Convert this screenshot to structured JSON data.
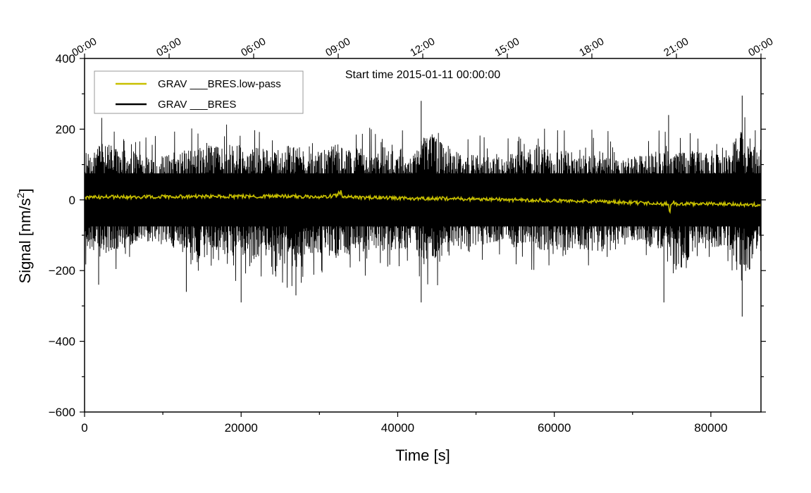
{
  "chart_data": {
    "type": "line",
    "title": "Start time 2015-01-11 00:00:00",
    "xlabel": "Time [s]",
    "ylabel_main": "Signal [nm/s",
    "ylabel_sup": "2",
    "ylabel_tail": "]",
    "xlim": [
      0,
      86400
    ],
    "ylim": [
      -600,
      400
    ],
    "xticks": [
      0,
      20000,
      40000,
      60000,
      80000
    ],
    "xtick_labels": [
      "0",
      "20000",
      "40000",
      "60000",
      "80000"
    ],
    "xticks_minor_step": 10000,
    "yticks": [
      -600,
      -400,
      -200,
      0,
      200,
      400
    ],
    "ytick_labels": [
      "−600",
      "−400",
      "−200",
      "0",
      "200",
      "400"
    ],
    "yticks_minor_step": 100,
    "top_axis": {
      "ticks": [
        0,
        10800,
        21600,
        32400,
        43200,
        54000,
        64800,
        75600,
        86400
      ],
      "labels": [
        "00:00",
        "03:00",
        "06:00",
        "09:00",
        "12:00",
        "15:00",
        "18:00",
        "21:00",
        "00:00"
      ]
    },
    "legend": {
      "placement": "top-left",
      "entries": [
        {
          "label": "GRAV ___BRES.low-pass",
          "color": "#c8c000"
        },
        {
          "label": "GRAV ___BRES",
          "color": "#000000"
        }
      ]
    },
    "series": [
      {
        "name": "GRAV ___BRES",
        "color": "#000000",
        "description": "raw residual signal, noise envelope approx ±150 nm/s2 with peaks to ±300",
        "x": [
          0,
          2000,
          4000,
          6000,
          8000,
          10000,
          12000,
          14000,
          16000,
          18000,
          20000,
          22000,
          24000,
          26000,
          28000,
          30000,
          32000,
          34000,
          36000,
          38000,
          40000,
          42000,
          44000,
          46000,
          48000,
          50000,
          52000,
          54000,
          56000,
          58000,
          60000,
          62000,
          64000,
          66000,
          68000,
          70000,
          72000,
          74000,
          76000,
          78000,
          80000,
          82000,
          84000,
          86400
        ],
        "envelope_upper": [
          150,
          240,
          210,
          200,
          180,
          190,
          200,
          210,
          220,
          220,
          230,
          210,
          200,
          220,
          210,
          200,
          230,
          210,
          220,
          200,
          210,
          200,
          280,
          220,
          200,
          190,
          170,
          180,
          200,
          220,
          200,
          210,
          200,
          220,
          180,
          170,
          190,
          200,
          190,
          200,
          180,
          190,
          290,
          200
        ],
        "envelope_lower": [
          -180,
          -240,
          -200,
          -190,
          -170,
          -180,
          -200,
          -260,
          -230,
          -220,
          -290,
          -230,
          -220,
          -270,
          -230,
          -220,
          -240,
          -210,
          -220,
          -200,
          -210,
          -200,
          -290,
          -220,
          -200,
          -190,
          -170,
          -180,
          -200,
          -220,
          -200,
          -210,
          -200,
          -220,
          -180,
          -170,
          -190,
          -200,
          -290,
          -200,
          -190,
          -200,
          -330,
          -220
        ],
        "spikes": [
          [
            1800,
            -240
          ],
          [
            13000,
            -260
          ],
          [
            20000,
            -290
          ],
          [
            27000,
            -270
          ],
          [
            43000,
            280
          ],
          [
            43000,
            -290
          ],
          [
            74000,
            -290
          ],
          [
            74600,
            240
          ],
          [
            84000,
            295
          ],
          [
            84000,
            -330
          ]
        ]
      },
      {
        "name": "GRAV ___BRES.low-pass",
        "color": "#c8c000",
        "x": [
          0,
          5000,
          10000,
          15000,
          20000,
          25000,
          30000,
          32600,
          35000,
          40000,
          45000,
          50000,
          55000,
          60000,
          65000,
          70000,
          74800,
          78000,
          82000,
          86400
        ],
        "values": [
          8,
          8,
          9,
          10,
          10,
          10,
          9,
          12,
          7,
          5,
          4,
          2,
          0,
          -2,
          -4,
          -8,
          -12,
          -11,
          -12,
          -14
        ],
        "noise_amplitude": 5,
        "bursts": [
          [
            32600,
            22
          ],
          [
            74800,
            -28
          ],
          [
            75200,
            12
          ]
        ]
      }
    ]
  }
}
